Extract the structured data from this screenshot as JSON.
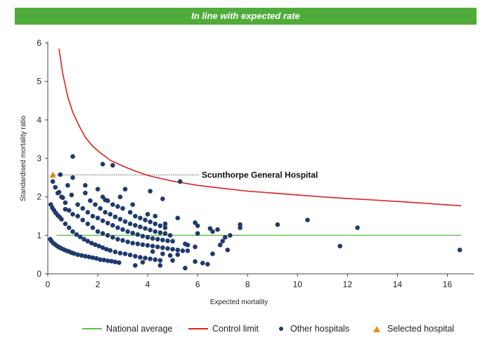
{
  "banner": {
    "text": "In line with expected rate",
    "color": "#50ac3a"
  },
  "legend": {
    "national": "National average",
    "control": "Control limit",
    "others": "Other hospitals",
    "selected": "Selected hospital"
  },
  "colors": {
    "national": "#5fbf4f",
    "control": "#e02020",
    "others": "#1f3a6e",
    "selected": "#f08a1c"
  },
  "chart_data": {
    "type": "scatter",
    "xlabel": "Expected mortality",
    "ylabel": "Standardised mortality ratio",
    "xlim": [
      0,
      17
    ],
    "ylim": [
      0,
      6
    ],
    "xticks": [
      0,
      2,
      4,
      6,
      8,
      10,
      12,
      14,
      16
    ],
    "yticks": [
      0,
      1,
      2,
      3,
      4,
      5,
      6
    ],
    "grid": false,
    "legend_position": "bottom",
    "national_average": {
      "name": "National average",
      "y": 1,
      "x": [
        0.35,
        16.55
      ]
    },
    "control_limit": {
      "name": "Control limit",
      "x": [
        0.45,
        0.6,
        0.8,
        1.0,
        1.25,
        1.5,
        1.75,
        2.0,
        2.5,
        3.0,
        3.5,
        4.0,
        4.5,
        5.0,
        6.0,
        7.0,
        8.0,
        9.0,
        10.0,
        11.0,
        12.0,
        13.0,
        14.0,
        15.0,
        16.0,
        16.55
      ],
      "y": [
        5.85,
        5.2,
        4.6,
        4.2,
        3.85,
        3.55,
        3.35,
        3.2,
        2.95,
        2.8,
        2.67,
        2.56,
        2.48,
        2.41,
        2.3,
        2.22,
        2.15,
        2.1,
        2.05,
        2.0,
        1.96,
        1.92,
        1.88,
        1.84,
        1.79,
        1.77
      ]
    },
    "selected_hospital": {
      "name": "Scunthorpe General Hospital",
      "x": 0.2,
      "y": 2.57,
      "label": "Scunthorpe General Hospital"
    },
    "series": [
      {
        "name": "Other hospitals",
        "points": [
          [
            0.1,
            0.9
          ],
          [
            0.15,
            0.85
          ],
          [
            0.22,
            0.8
          ],
          [
            0.3,
            0.76
          ],
          [
            0.38,
            0.72
          ],
          [
            0.46,
            0.69
          ],
          [
            0.55,
            0.66
          ],
          [
            0.65,
            0.63
          ],
          [
            0.75,
            0.6
          ],
          [
            0.85,
            0.58
          ],
          [
            0.95,
            0.55
          ],
          [
            1.05,
            0.53
          ],
          [
            1.2,
            0.5
          ],
          [
            1.35,
            0.48
          ],
          [
            1.5,
            0.46
          ],
          [
            1.65,
            0.44
          ],
          [
            1.8,
            0.42
          ],
          [
            1.95,
            0.4
          ],
          [
            2.1,
            0.37
          ],
          [
            2.25,
            0.36
          ],
          [
            2.4,
            0.34
          ],
          [
            2.55,
            0.33
          ],
          [
            2.7,
            0.31
          ],
          [
            2.85,
            0.29
          ],
          [
            0.12,
            1.8
          ],
          [
            0.18,
            1.72
          ],
          [
            0.25,
            1.65
          ],
          [
            0.32,
            1.58
          ],
          [
            0.4,
            1.52
          ],
          [
            0.48,
            1.47
          ],
          [
            0.55,
            1.42
          ],
          [
            0.7,
            1.3
          ],
          [
            0.85,
            1.2
          ],
          [
            1.0,
            1.1
          ],
          [
            1.15,
            1.02
          ],
          [
            1.3,
            0.96
          ],
          [
            1.45,
            0.9
          ],
          [
            1.6,
            0.85
          ],
          [
            1.75,
            0.8
          ],
          [
            1.9,
            0.76
          ],
          [
            2.05,
            0.72
          ],
          [
            2.2,
            0.68
          ],
          [
            2.35,
            0.64
          ],
          [
            2.5,
            0.61
          ],
          [
            2.7,
            0.57
          ],
          [
            2.9,
            0.54
          ],
          [
            3.1,
            0.52
          ],
          [
            3.3,
            0.49
          ],
          [
            3.5,
            0.46
          ],
          [
            3.7,
            0.43
          ],
          [
            3.9,
            0.41
          ],
          [
            4.1,
            0.39
          ],
          [
            4.3,
            0.37
          ],
          [
            4.5,
            0.35
          ],
          [
            0.2,
            2.4
          ],
          [
            0.3,
            2.25
          ],
          [
            0.4,
            2.1
          ],
          [
            0.55,
            2.0
          ],
          [
            0.7,
            1.85
          ],
          [
            0.85,
            1.65
          ],
          [
            1.0,
            1.55
          ],
          [
            1.2,
            1.5
          ],
          [
            1.4,
            1.4
          ],
          [
            1.6,
            1.3
          ],
          [
            1.8,
            1.2
          ],
          [
            2.0,
            1.1
          ],
          [
            2.2,
            1.05
          ],
          [
            2.4,
            1.0
          ],
          [
            2.6,
            0.95
          ],
          [
            2.8,
            0.9
          ],
          [
            3.0,
            0.87
          ],
          [
            3.2,
            0.83
          ],
          [
            3.4,
            0.8
          ],
          [
            3.6,
            0.78
          ],
          [
            3.8,
            0.76
          ],
          [
            4.0,
            0.74
          ],
          [
            4.2,
            0.72
          ],
          [
            4.4,
            0.7
          ],
          [
            4.6,
            0.68
          ],
          [
            4.8,
            0.66
          ],
          [
            5.0,
            0.64
          ],
          [
            5.2,
            0.62
          ],
          [
            5.4,
            0.6
          ],
          [
            1.2,
            1.8
          ],
          [
            1.4,
            1.7
          ],
          [
            1.6,
            1.6
          ],
          [
            1.8,
            1.5
          ],
          [
            2.0,
            1.45
          ],
          [
            2.2,
            1.38
          ],
          [
            2.4,
            1.32
          ],
          [
            2.6,
            1.26
          ],
          [
            2.8,
            1.2
          ],
          [
            3.0,
            1.15
          ],
          [
            3.2,
            1.1
          ],
          [
            3.4,
            1.06
          ],
          [
            3.6,
            1.02
          ],
          [
            3.8,
            0.98
          ],
          [
            4.0,
            0.95
          ],
          [
            4.2,
            0.92
          ],
          [
            4.4,
            0.9
          ],
          [
            4.6,
            0.88
          ],
          [
            4.8,
            0.86
          ],
          [
            5.0,
            0.85
          ],
          [
            1.5,
            2.1
          ],
          [
            1.7,
            1.9
          ],
          [
            1.9,
            1.8
          ],
          [
            2.1,
            1.7
          ],
          [
            2.3,
            1.6
          ],
          [
            2.5,
            1.55
          ],
          [
            2.7,
            1.48
          ],
          [
            2.9,
            1.42
          ],
          [
            3.1,
            1.36
          ],
          [
            3.3,
            1.3
          ],
          [
            3.5,
            1.26
          ],
          [
            3.7,
            1.22
          ],
          [
            3.9,
            1.18
          ],
          [
            4.1,
            1.14
          ],
          [
            4.3,
            1.1
          ],
          [
            4.5,
            1.07
          ],
          [
            4.7,
            1.05
          ],
          [
            2.0,
            2.2
          ],
          [
            2.2,
            2.0
          ],
          [
            2.4,
            1.9
          ],
          [
            2.6,
            1.8
          ],
          [
            2.8,
            1.75
          ],
          [
            3.0,
            1.7
          ],
          [
            3.3,
            1.6
          ],
          [
            3.5,
            1.5
          ],
          [
            3.7,
            1.45
          ],
          [
            3.9,
            1.4
          ],
          [
            4.1,
            1.35
          ],
          [
            4.3,
            1.3
          ],
          [
            4.5,
            1.25
          ],
          [
            4.7,
            1.2
          ],
          [
            0.5,
            2.58
          ],
          [
            0.8,
            2.3
          ],
          [
            1.0,
            2.5
          ],
          [
            1.0,
            3.05
          ],
          [
            2.2,
            2.85
          ],
          [
            2.6,
            2.82
          ],
          [
            3.1,
            2.2
          ],
          [
            4.1,
            2.15
          ],
          [
            4.6,
            1.95
          ],
          [
            5.3,
            2.4
          ],
          [
            0.95,
            2.05
          ],
          [
            1.5,
            2.3
          ],
          [
            0.6,
            1.98
          ],
          [
            0.45,
            2.12
          ],
          [
            0.7,
            1.68
          ],
          [
            2.3,
            1.92
          ],
          [
            2.9,
            2.0
          ],
          [
            3.4,
            1.8
          ],
          [
            3.5,
            0.22
          ],
          [
            3.8,
            0.3
          ],
          [
            4.5,
            0.22
          ],
          [
            5.0,
            0.35
          ],
          [
            5.5,
            0.15
          ],
          [
            5.9,
            0.32
          ],
          [
            6.2,
            0.28
          ],
          [
            6.4,
            0.25
          ],
          [
            4.2,
            0.58
          ],
          [
            4.6,
            0.52
          ],
          [
            4.9,
            0.48
          ],
          [
            5.2,
            0.5
          ],
          [
            5.6,
            0.6
          ],
          [
            5.9,
            0.7
          ],
          [
            6.6,
            0.52
          ],
          [
            5.5,
            0.78
          ],
          [
            5.6,
            0.75
          ],
          [
            6.0,
            1.05
          ],
          [
            6.0,
            1.25
          ],
          [
            5.9,
            1.33
          ],
          [
            6.5,
            1.18
          ],
          [
            6.6,
            1.1
          ],
          [
            6.8,
            1.15
          ],
          [
            7.0,
            0.85
          ],
          [
            7.1,
            0.95
          ],
          [
            7.3,
            1.0
          ],
          [
            6.9,
            0.75
          ],
          [
            7.2,
            0.62
          ],
          [
            7.7,
            1.2
          ],
          [
            7.7,
            1.28
          ],
          [
            5.2,
            1.45
          ],
          [
            4.9,
            1.0
          ],
          [
            4.7,
            1.3
          ],
          [
            4.3,
            1.5
          ],
          [
            4.0,
            1.55
          ],
          [
            9.2,
            1.28
          ],
          [
            10.4,
            1.4
          ],
          [
            11.7,
            0.72
          ],
          [
            12.4,
            1.2
          ],
          [
            16.5,
            0.62
          ]
        ]
      }
    ]
  }
}
